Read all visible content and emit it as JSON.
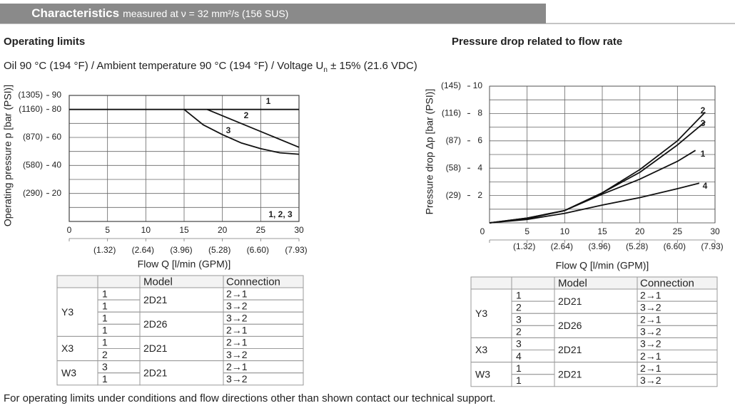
{
  "header": {
    "title": "Characteristics",
    "subtitle": "measured at ν = 32 mm²/s (156 SUS)"
  },
  "chart_data": [
    {
      "type": "line",
      "title": "Operating limits",
      "subtitle": [
        "Oil 90 °C (194 °F) / Ambient temperature 90 °C (194 °F) / Voltage U",
        "n",
        " ± 15% (21.6 VDC)"
      ],
      "x_label": "Flow Q [l/min (GPM)]",
      "y_label": "Operating pressure p [bar (PSI)]",
      "xlim": [
        0,
        30
      ],
      "xticks": [
        0,
        5,
        10,
        15,
        20,
        25,
        30
      ],
      "xticks_secondary": [
        null,
        "(1.32)",
        "(2.64)",
        "(3.96)",
        "(5.28)",
        "(6.60)",
        "(7.93)"
      ],
      "ylim": [
        0,
        90
      ],
      "yticks": [
        20,
        40,
        60,
        80,
        90
      ],
      "yticks_secondary": [
        "(290)",
        "(580)",
        "(870)",
        "(1160)",
        "(1305)"
      ],
      "ygrid": [
        10,
        20,
        30,
        40,
        50,
        60,
        70,
        80,
        90
      ],
      "grid": true,
      "series": [
        {
          "name": "1",
          "color": "#111111",
          "x": [
            0,
            30
          ],
          "values": [
            80,
            80
          ]
        },
        {
          "name": "2",
          "color": "#111111",
          "x": [
            18,
            30
          ],
          "values": [
            80,
            53
          ]
        },
        {
          "name": "3",
          "color": "#111111",
          "x": [
            15,
            17.5,
            20,
            22.5,
            25,
            27.5,
            30
          ],
          "values": [
            80,
            69,
            62,
            56,
            52,
            49,
            48
          ]
        }
      ],
      "annotation": "1, 2, 3"
    },
    {
      "type": "line",
      "title": "Pressure drop related to flow rate",
      "x_label": "Flow Q [l/min (GPM)]",
      "y_label": "Pressure drop Δp [bar (PSI)]",
      "xlim": [
        0,
        30
      ],
      "xticks": [
        0,
        5,
        10,
        15,
        20,
        25,
        30
      ],
      "xticks_secondary": [
        null,
        "(1.32)",
        "(2.64)",
        "(3.96)",
        "(5.28)",
        "(6.60)",
        "(7.93)"
      ],
      "ylim": [
        0,
        10
      ],
      "yticks": [
        2,
        4,
        6,
        8,
        10
      ],
      "yticks_secondary": [
        "(29)",
        "(58)",
        "(87)",
        "(116)",
        "(145)"
      ],
      "ygrid": [
        1,
        2,
        3,
        4,
        5,
        6,
        7,
        8,
        9,
        10
      ],
      "grid": true,
      "series": [
        {
          "name": "2",
          "color": "#111111",
          "x": [
            0,
            5,
            10,
            15,
            20,
            25,
            28.7
          ],
          "values": [
            0,
            0.35,
            0.9,
            2.2,
            3.9,
            6,
            8.1
          ]
        },
        {
          "name": "3",
          "color": "#111111",
          "x": [
            0,
            5,
            10,
            15,
            20,
            25,
            28.7
          ],
          "values": [
            0,
            0.35,
            0.9,
            2.2,
            3.7,
            5.7,
            7.4
          ]
        },
        {
          "name": "1",
          "color": "#111111",
          "x": [
            0,
            5,
            10,
            15,
            20,
            25,
            27.4
          ],
          "values": [
            0,
            0.3,
            0.9,
            2.1,
            3.2,
            4.5,
            5.3
          ]
        },
        {
          "name": "4",
          "color": "#111111",
          "x": [
            0,
            5,
            10,
            15,
            20,
            25,
            27.9
          ],
          "values": [
            0,
            0.25,
            0.7,
            1.3,
            1.85,
            2.5,
            2.9
          ]
        }
      ]
    }
  ],
  "tables": [
    {
      "header": [
        "Model",
        "Connection"
      ],
      "groups": [
        {
          "label": "Y3",
          "blocks": [
            {
              "model": "2D21",
              "ports": [
                "1",
                "1"
              ],
              "connections": [
                "2→1",
                "3→2"
              ]
            },
            {
              "model": "2D26",
              "ports": [
                "1",
                "1"
              ],
              "connections": [
                "3→2",
                "2→1"
              ]
            }
          ]
        },
        {
          "label": "X3",
          "blocks": [
            {
              "model": "2D21",
              "ports": [
                "1",
                "2"
              ],
              "connections": [
                "2→1",
                "3→2"
              ]
            }
          ]
        },
        {
          "label": "W3",
          "blocks": [
            {
              "model": "2D21",
              "ports": [
                "3",
                "1"
              ],
              "connections": [
                "2→1",
                "3→2"
              ]
            }
          ]
        }
      ]
    },
    {
      "header": [
        "Model",
        "Connection"
      ],
      "groups": [
        {
          "label": "Y3",
          "blocks": [
            {
              "model": "2D21",
              "ports": [
                "1",
                "2"
              ],
              "connections": [
                "2→1",
                "3→2"
              ]
            },
            {
              "model": "2D26",
              "ports": [
                "3",
                "2"
              ],
              "connections": [
                "2→1",
                "3→2"
              ]
            }
          ]
        },
        {
          "label": "X3",
          "blocks": [
            {
              "model": "2D21",
              "ports": [
                "3",
                "4"
              ],
              "connections": [
                "3→2",
                "2→1"
              ]
            }
          ]
        },
        {
          "label": "W3",
          "blocks": [
            {
              "model": "2D21",
              "ports": [
                "1",
                "1"
              ],
              "connections": [
                "2→1",
                "3→2"
              ]
            }
          ]
        }
      ]
    }
  ],
  "footnote": "For operating limits under conditions and flow directions other than shown contact our technical support."
}
